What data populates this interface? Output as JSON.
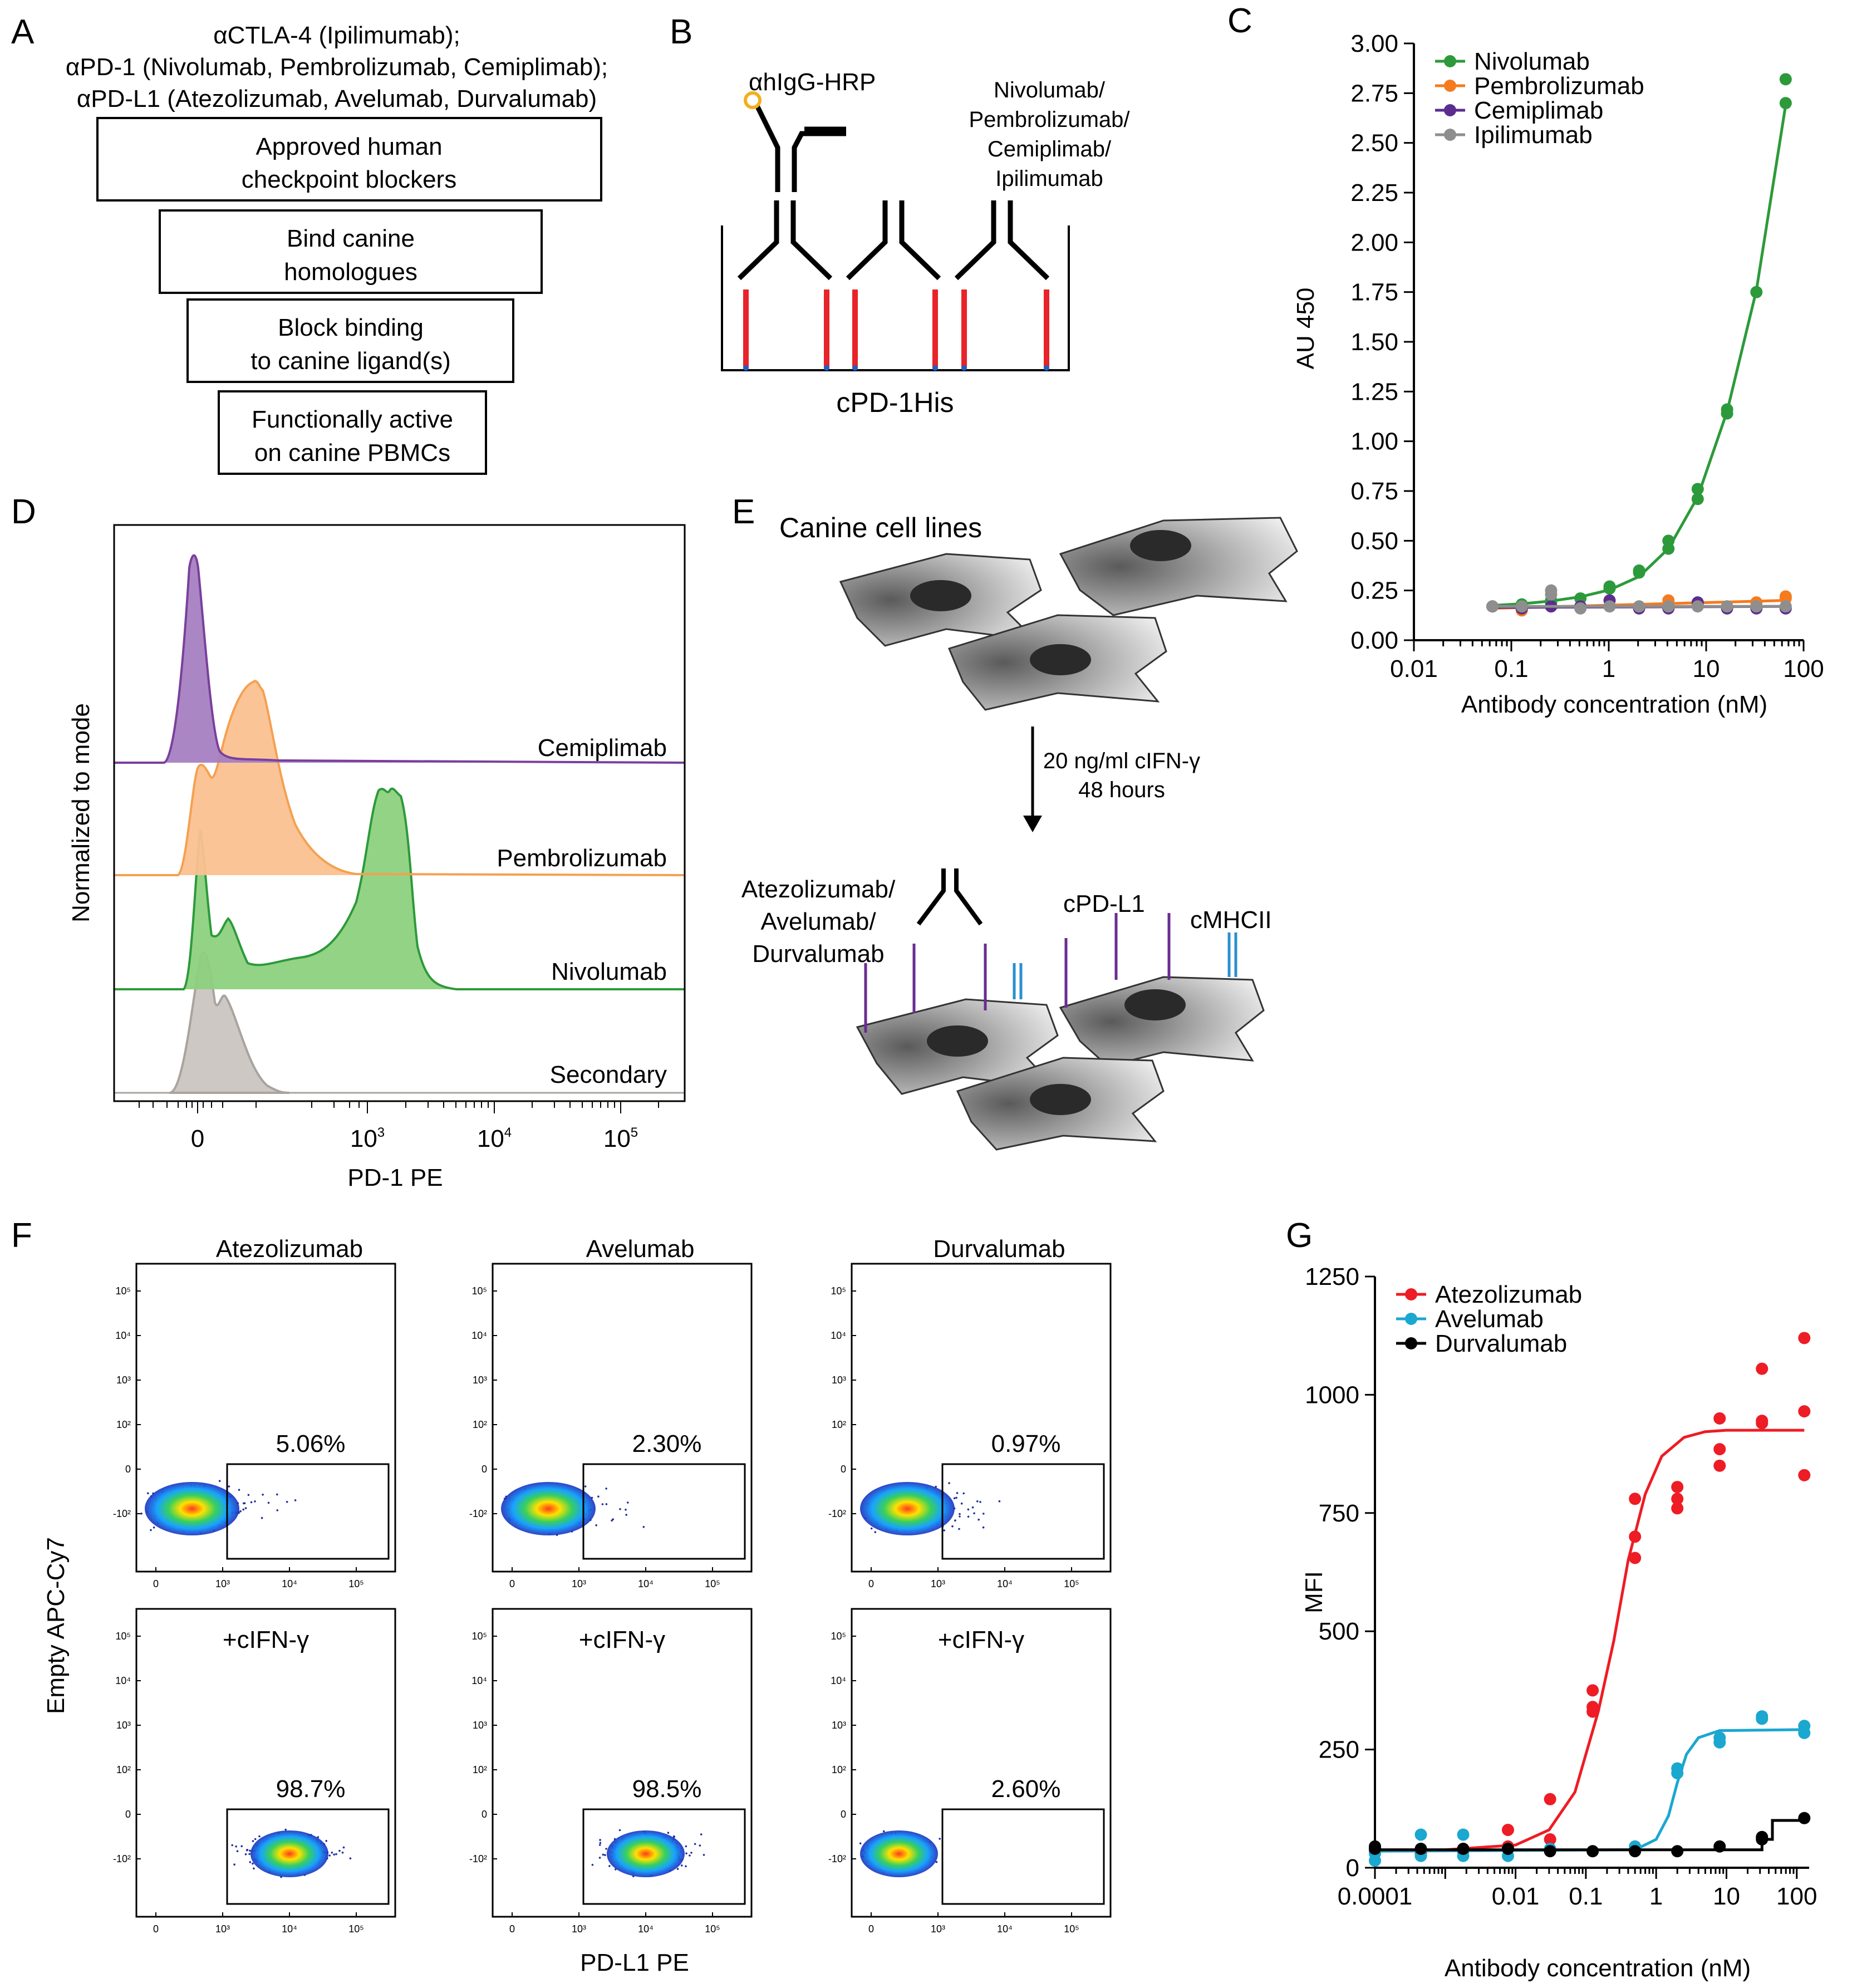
{
  "panels": {
    "A": {
      "letter": "A",
      "header_lines": [
        "αCTLA-4 (Ipilimumab);",
        "αPD-1 (Nivolumab, Pembrolizumab, Cemiplimab);",
        "αPD-L1 (Atezolizumab, Avelumab, Durvalumab)"
      ],
      "boxes": [
        {
          "line1": "Approved human",
          "line2": "checkpoint blockers"
        },
        {
          "line1": "Bind canine",
          "line2": "homologues"
        },
        {
          "line1": "Block binding",
          "line2": "to canine ligand(s)"
        },
        {
          "line1": "Functionally active",
          "line2": "on canine PBMCs"
        }
      ]
    },
    "B": {
      "letter": "B",
      "detector_label": "αhIgG-HRP",
      "antibody_label_lines": [
        "Nivolumab/",
        "Pembrolizumab/",
        "Cemiplimab/",
        "Ipilimumab"
      ],
      "well_label": "cPD-1His"
    },
    "D": {
      "letter": "D",
      "ylabel": "Normalized to mode",
      "xlabel": "PD-1 PE",
      "x_ticks": [
        {
          "base": "0",
          "exp": ""
        },
        {
          "base": "10",
          "exp": "3"
        },
        {
          "base": "10",
          "exp": "4"
        },
        {
          "base": "10",
          "exp": "5"
        }
      ],
      "tracks": [
        {
          "name": "Cemiplimab",
          "color": "#7a3f9c",
          "fill": "#a77fc1"
        },
        {
          "name": "Pembrolizumab",
          "color": "#f5a050",
          "fill": "#fbc191"
        },
        {
          "name": "Nivolumab",
          "color": "#2c9a3a",
          "fill": "#8dd17f"
        },
        {
          "name": "Secondary",
          "color": "#a9a39e",
          "fill": "#cdc8c4"
        }
      ]
    },
    "E": {
      "letter": "E",
      "top_label": "Canine cell lines",
      "arrow_line1": "20 ng/ml cIFN-γ",
      "arrow_line2": "48 hours",
      "antibody_lines": [
        "Atezolizumab/",
        "Avelumab/",
        "Durvalumab"
      ],
      "ligand_label": "cPD-L1",
      "mhc_label": "cMHCII"
    },
    "F": {
      "letter": "F",
      "ylabel": "Empty APC-Cy7",
      "xlabel": "PD-L1 PE",
      "column_titles": [
        "Atezolizumab",
        "Avelumab",
        "Durvalumab"
      ],
      "row2_label": "+cIFN-γ",
      "percent_values": [
        [
          "5.06%",
          "2.30%",
          "0.97%"
        ],
        [
          "98.7%",
          "98.5%",
          "2.60%"
        ]
      ],
      "axis_ticks_y": [
        "10⁵",
        "10⁴",
        "10³",
        "10²",
        "0",
        "-10²"
      ],
      "axis_ticks_x": [
        "0",
        "10³",
        "10⁴",
        "10⁵"
      ]
    }
  },
  "chart_data": [
    {
      "panel": "C",
      "letter": "C",
      "type": "scatter",
      "xscale": "log",
      "xlabel": "Antibody concentration (nM)",
      "ylabel": "AU 450",
      "xlim": [
        0.01,
        100
      ],
      "ylim": [
        0,
        3
      ],
      "x_ticks": [
        "0.01",
        "0.1",
        "1",
        "10",
        "100"
      ],
      "y_ticks": [
        "0.00",
        "0.25",
        "0.50",
        "0.75",
        "1.00",
        "1.25",
        "1.50",
        "1.75",
        "2.00",
        "2.25",
        "2.50",
        "2.75",
        "3.00"
      ],
      "legend_position": "top-left",
      "x": [
        0.064,
        0.128,
        0.256,
        0.512,
        1.02,
        2.05,
        4.1,
        8.19,
        16.4,
        32.8,
        65.5
      ],
      "series": [
        {
          "name": "Nivolumab",
          "color": "#2c9a3a",
          "points": [
            [
              0.064,
              0.17
            ],
            [
              0.128,
              0.18
            ],
            [
              0.256,
              0.19
            ],
            [
              0.256,
              0.2
            ],
            [
              0.512,
              0.21
            ],
            [
              1.02,
              0.26
            ],
            [
              1.02,
              0.27
            ],
            [
              2.05,
              0.34
            ],
            [
              2.05,
              0.35
            ],
            [
              4.1,
              0.46
            ],
            [
              4.1,
              0.5
            ],
            [
              8.19,
              0.71
            ],
            [
              8.19,
              0.76
            ],
            [
              16.4,
              1.14
            ],
            [
              16.4,
              1.16
            ],
            [
              32.8,
              1.75
            ],
            [
              65.5,
              2.7
            ],
            [
              65.5,
              2.82
            ]
          ],
          "curve": [
            [
              0.064,
              0.175
            ],
            [
              0.128,
              0.183
            ],
            [
              0.256,
              0.197
            ],
            [
              0.512,
              0.218
            ],
            [
              1.02,
              0.253
            ],
            [
              2.05,
              0.32
            ],
            [
              4.1,
              0.46
            ],
            [
              8.19,
              0.72
            ],
            [
              16.4,
              1.15
            ],
            [
              32.8,
              1.76
            ],
            [
              65.5,
              2.69
            ]
          ]
        },
        {
          "name": "Pembrolizumab",
          "color": "#f47b20",
          "points": [
            [
              0.064,
              0.17
            ],
            [
              0.128,
              0.15
            ],
            [
              0.256,
              0.17
            ],
            [
              0.512,
              0.17
            ],
            [
              1.02,
              0.17
            ],
            [
              2.05,
              0.17
            ],
            [
              4.1,
              0.2
            ],
            [
              8.19,
              0.18
            ],
            [
              16.4,
              0.17
            ],
            [
              32.8,
              0.19
            ],
            [
              65.5,
              0.21
            ],
            [
              65.5,
              0.22
            ]
          ],
          "curve": [
            [
              0.064,
              0.16
            ],
            [
              65.5,
              0.2
            ]
          ]
        },
        {
          "name": "Cemiplimab",
          "color": "#5b2d8f",
          "points": [
            [
              0.064,
              0.17
            ],
            [
              0.128,
              0.16
            ],
            [
              0.256,
              0.17
            ],
            [
              0.512,
              0.17
            ],
            [
              1.02,
              0.2
            ],
            [
              2.05,
              0.16
            ],
            [
              4.1,
              0.16
            ],
            [
              8.19,
              0.19
            ],
            [
              16.4,
              0.16
            ],
            [
              32.8,
              0.16
            ],
            [
              65.5,
              0.16
            ]
          ],
          "curve": [
            [
              0.064,
              0.165
            ],
            [
              65.5,
              0.17
            ]
          ]
        },
        {
          "name": "Ipilimumab",
          "color": "#8e8e8e",
          "points": [
            [
              0.064,
              0.17
            ],
            [
              0.128,
              0.17
            ],
            [
              0.256,
              0.23
            ],
            [
              0.256,
              0.25
            ],
            [
              0.512,
              0.16
            ],
            [
              1.02,
              0.17
            ],
            [
              2.05,
              0.17
            ],
            [
              4.1,
              0.17
            ],
            [
              8.19,
              0.17
            ],
            [
              16.4,
              0.17
            ],
            [
              32.8,
              0.17
            ],
            [
              65.5,
              0.17
            ]
          ],
          "curve": [
            [
              0.064,
              0.17
            ],
            [
              65.5,
              0.17
            ]
          ]
        }
      ]
    },
    {
      "panel": "G",
      "letter": "G",
      "type": "scatter",
      "xscale": "log",
      "xlabel": "Antibody concentration (nM)",
      "ylabel": "MFI",
      "xlim": [
        0.0001,
        150
      ],
      "ylim": [
        0,
        1250
      ],
      "x_ticks": [
        "0.0001",
        "0.01",
        "0.1",
        "1",
        "10",
        "100"
      ],
      "y_ticks": [
        "0",
        "250",
        "500",
        "750",
        "1000",
        "1250"
      ],
      "legend_position": "top-left",
      "series": [
        {
          "name": "Atezolizumab",
          "color": "#ee1c24",
          "points": [
            [
              0.0001,
              40
            ],
            [
              0.0001,
              35
            ],
            [
              0.00045,
              30
            ],
            [
              0.00045,
              38
            ],
            [
              0.0018,
              35
            ],
            [
              0.0018,
              40
            ],
            [
              0.0078,
              80
            ],
            [
              0.0078,
              45
            ],
            [
              0.031,
              145
            ],
            [
              0.031,
              60
            ],
            [
              0.125,
              375
            ],
            [
              0.125,
              330
            ],
            [
              0.125,
              340
            ],
            [
              0.5,
              780
            ],
            [
              0.5,
              700
            ],
            [
              0.5,
              655
            ],
            [
              2,
              805
            ],
            [
              2,
              780
            ],
            [
              2,
              760
            ],
            [
              8,
              950
            ],
            [
              8,
              885
            ],
            [
              8,
              850
            ],
            [
              32,
              1055
            ],
            [
              32,
              945
            ],
            [
              32,
              940
            ],
            [
              128,
              1120
            ],
            [
              128,
              965
            ],
            [
              128,
              830
            ]
          ],
          "curve": [
            [
              0.0001,
              38
            ],
            [
              0.001,
              38
            ],
            [
              0.01,
              48
            ],
            [
              0.03,
              80
            ],
            [
              0.07,
              160
            ],
            [
              0.15,
              330
            ],
            [
              0.25,
              480
            ],
            [
              0.4,
              650
            ],
            [
              0.7,
              790
            ],
            [
              1.2,
              870
            ],
            [
              2.5,
              910
            ],
            [
              5,
              922
            ],
            [
              10,
              925
            ],
            [
              128,
              925
            ]
          ]
        },
        {
          "name": "Avelumab",
          "color": "#1aa7d0",
          "points": [
            [
              0.0001,
              30
            ],
            [
              0.0001,
              15
            ],
            [
              0.00045,
              70
            ],
            [
              0.00045,
              25
            ],
            [
              0.0018,
              70
            ],
            [
              0.0018,
              25
            ],
            [
              0.0078,
              40
            ],
            [
              0.0078,
              25
            ],
            [
              0.031,
              40
            ],
            [
              0.125,
              35
            ],
            [
              0.5,
              45
            ],
            [
              0.5,
              40
            ],
            [
              2,
              200
            ],
            [
              2,
              210
            ],
            [
              8,
              265
            ],
            [
              8,
              275
            ],
            [
              32,
              320
            ],
            [
              32,
              315
            ],
            [
              128,
              300
            ],
            [
              128,
              285
            ]
          ],
          "curve": [
            [
              0.0001,
              35
            ],
            [
              0.5,
              38
            ],
            [
              1,
              60
            ],
            [
              1.5,
              110
            ],
            [
              2,
              180
            ],
            [
              2.7,
              240
            ],
            [
              4,
              275
            ],
            [
              8,
              290
            ],
            [
              128,
              292
            ]
          ]
        },
        {
          "name": "Durvalumab",
          "color": "#000000",
          "points": [
            [
              0.0001,
              40
            ],
            [
              0.0001,
              45
            ],
            [
              0.00045,
              40
            ],
            [
              0.0018,
              40
            ],
            [
              0.0078,
              40
            ],
            [
              0.031,
              35
            ],
            [
              0.125,
              35
            ],
            [
              0.5,
              35
            ],
            [
              2,
              35
            ],
            [
              8,
              45
            ],
            [
              32,
              65
            ],
            [
              32,
              60
            ],
            [
              128,
              105
            ]
          ],
          "curve": [
            [
              0.0001,
              38
            ],
            [
              32,
              38
            ],
            [
              32,
              60
            ],
            [
              45,
              60
            ],
            [
              45,
              100
            ],
            [
              128,
              100
            ]
          ]
        }
      ]
    }
  ]
}
